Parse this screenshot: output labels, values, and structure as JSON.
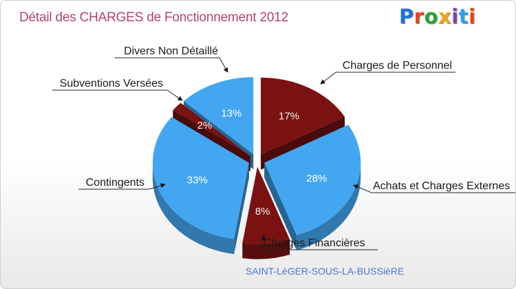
{
  "title": "Détail des CHARGES de Fonctionnement 2012",
  "logo": {
    "text": "Proxiti",
    "letter_colors": [
      "#1e74d6",
      "#e9431a",
      "#2ea23a",
      "#f3a418",
      "#7f3fb8",
      "#2a9df4",
      "#e9431a"
    ]
  },
  "subtitle": "SAINT-LéGER-SOUS-LA-BUSSièRE",
  "chart_data": {
    "type": "pie",
    "title": "Détail des CHARGES de Fonctionnement 2012",
    "categories": [
      "Charges de Personnel",
      "Achats et Charges Externes",
      "Charges Financières",
      "Contingents",
      "Subventions Versées",
      "Divers Non Détaillé"
    ],
    "values": [
      17,
      28,
      8,
      33,
      2,
      13
    ],
    "labels": [
      "17%",
      "28%",
      "8%",
      "33%",
      "2%",
      "13%"
    ],
    "colors": [
      "#7a1212",
      "#43a6f0",
      "#7a1212",
      "#43a6f0",
      "#7a1212",
      "#43a6f0"
    ],
    "start_angle_deg": 0,
    "direction": "clockwise",
    "exploded": true
  }
}
